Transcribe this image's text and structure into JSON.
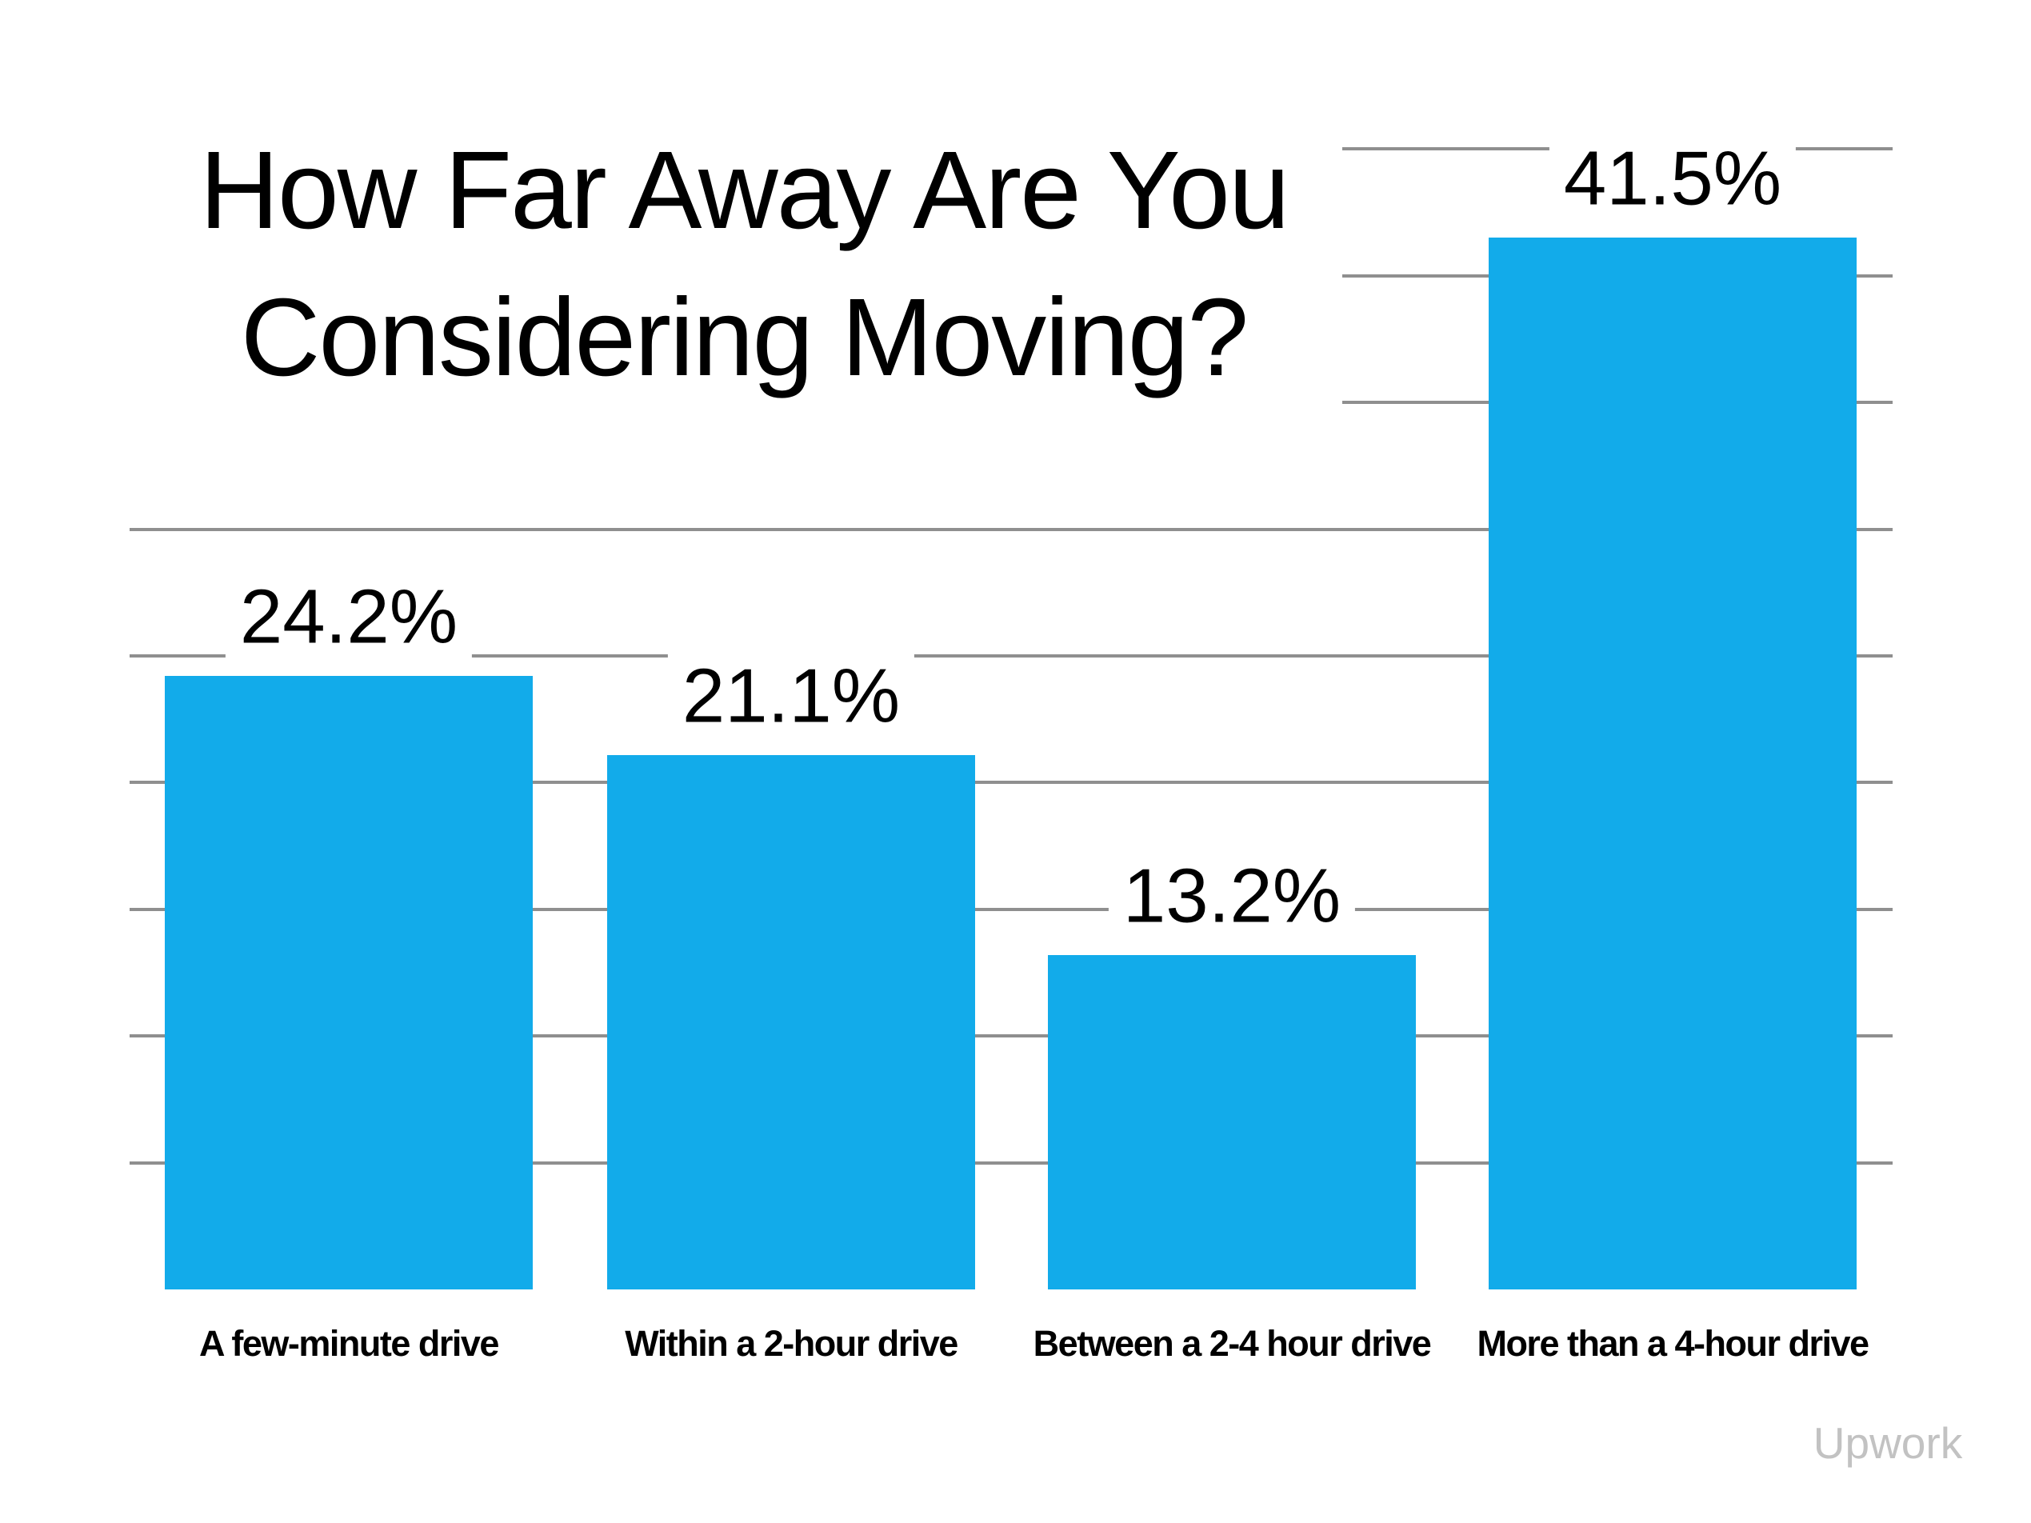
{
  "title": {
    "line1": "How Far Away Are You",
    "line2": "Considering Moving?"
  },
  "watermark": "Upwork",
  "chart_data": {
    "type": "bar",
    "title": "How Far Away Are You Considering Moving?",
    "categories": [
      "A few-minute drive",
      "Within a 2-hour drive",
      "Between a 2-4 hour drive",
      "More than a 4-hour drive"
    ],
    "values": [
      24.2,
      21.1,
      13.2,
      41.5
    ],
    "value_labels": [
      "24.2%",
      "21.1%",
      "13.2%",
      "41.5%"
    ],
    "xlabel": "",
    "ylabel": "",
    "ylim": [
      0,
      45
    ],
    "gridline_step_pct": 5,
    "grid": "horizontal-only",
    "legend": "none",
    "axis_tick_labels": "none",
    "bar_color": "#12ABEA",
    "gridline_color": "#8f8f8f",
    "label_color": "#000000",
    "watermark_color": "#c2c2c2",
    "background_color": "#ffffff"
  }
}
